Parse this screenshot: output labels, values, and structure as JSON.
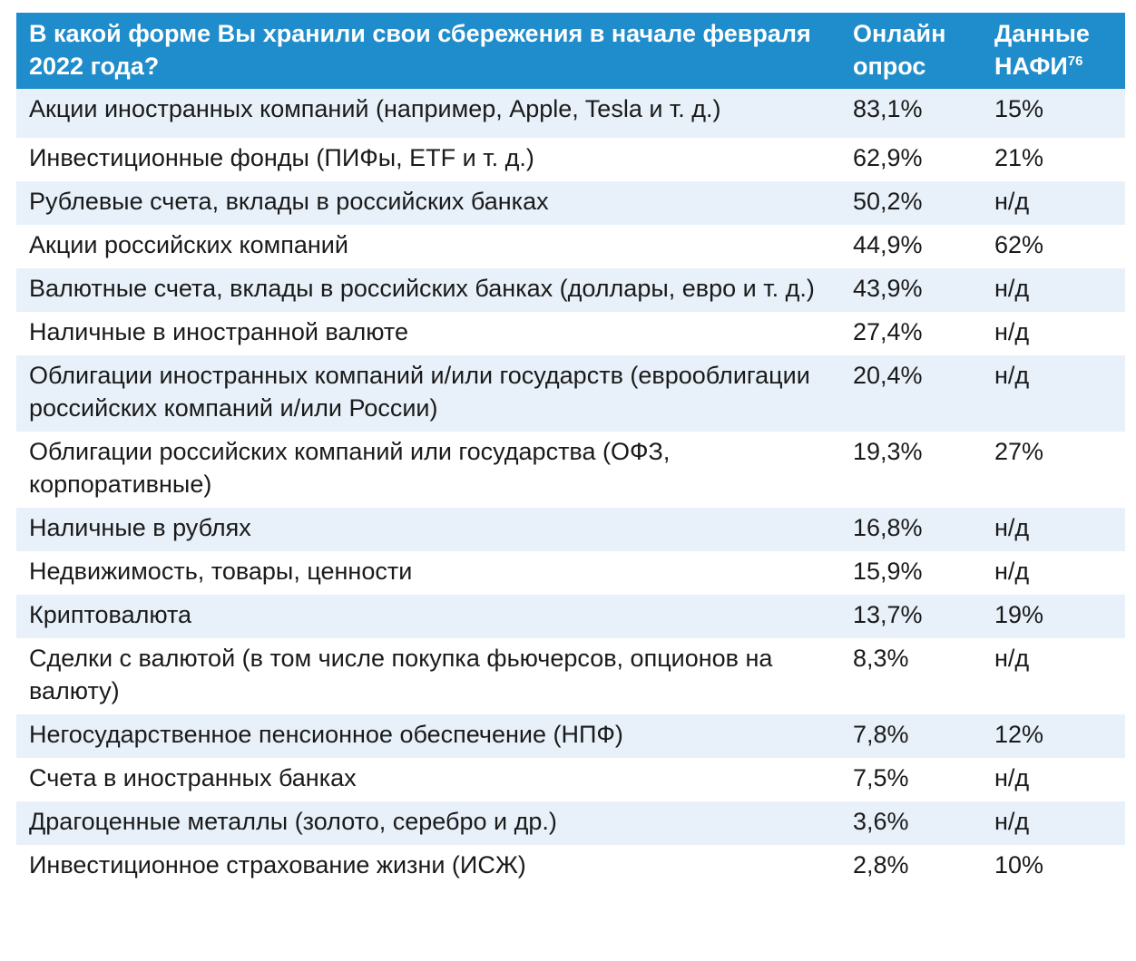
{
  "header": {
    "question": "В какой форме Вы хранили свои сбережения в начале февраля 2022 года?",
    "col_online": "Онлайн опрос",
    "col_nafi": "Данные НАФИ",
    "col_nafi_note": "76"
  },
  "rows": [
    {
      "label": "Акции иностранных компаний (например, Apple, Tesla и т. д.)",
      "online": "83,1%",
      "nafi": "15%"
    },
    {
      "label": "Инвестиционные фонды (ПИФы, ETF и т. д.)",
      "online": "62,9%",
      "nafi": "21%"
    },
    {
      "label": "Рублевые счета, вклады в российских банках",
      "online": "50,2%",
      "nafi": "н/д"
    },
    {
      "label": "Акции российских компаний",
      "online": "44,9%",
      "nafi": "62%"
    },
    {
      "label": "Валютные счета, вклады в российских банках (доллары, евро и т. д.)",
      "online": "43,9%",
      "nafi": "н/д"
    },
    {
      "label": "Наличные в иностранной валюте",
      "online": "27,4%",
      "nafi": "н/д"
    },
    {
      "label": "Облигации иностранных компаний и/или государств (еврооблигации российских компаний и/или России)",
      "online": "20,4%",
      "nafi": "н/д"
    },
    {
      "label": "Облигации российских компаний или государства (ОФЗ, корпоративные)",
      "online": "19,3%",
      "nafi": "27%"
    },
    {
      "label": "Наличные в рублях",
      "online": "16,8%",
      "nafi": "н/д"
    },
    {
      "label": "Недвижимость, товары, ценности",
      "online": "15,9%",
      "nafi": "н/д"
    },
    {
      "label": "Криптовалюта",
      "online": "13,7%",
      "nafi": "19%"
    },
    {
      "label": "Сделки с валютой (в том числе покупка фьючерсов, опционов на валюту)",
      "online": "8,3%",
      "nafi": "н/д"
    },
    {
      "label": "Негосударственное пенсионное обеспечение (НПФ)",
      "online": "7,8%",
      "nafi": "12%"
    },
    {
      "label": "Счета в иностранных банках",
      "online": "7,5%",
      "nafi": "н/д"
    },
    {
      "label": "Драгоценные металлы (золото, серебро и др.)",
      "online": "3,6%",
      "nafi": "н/д"
    },
    {
      "label": "Инвестиционное страхование жизни (ИСЖ)",
      "online": "2,8%",
      "nafi": "10%"
    }
  ]
}
